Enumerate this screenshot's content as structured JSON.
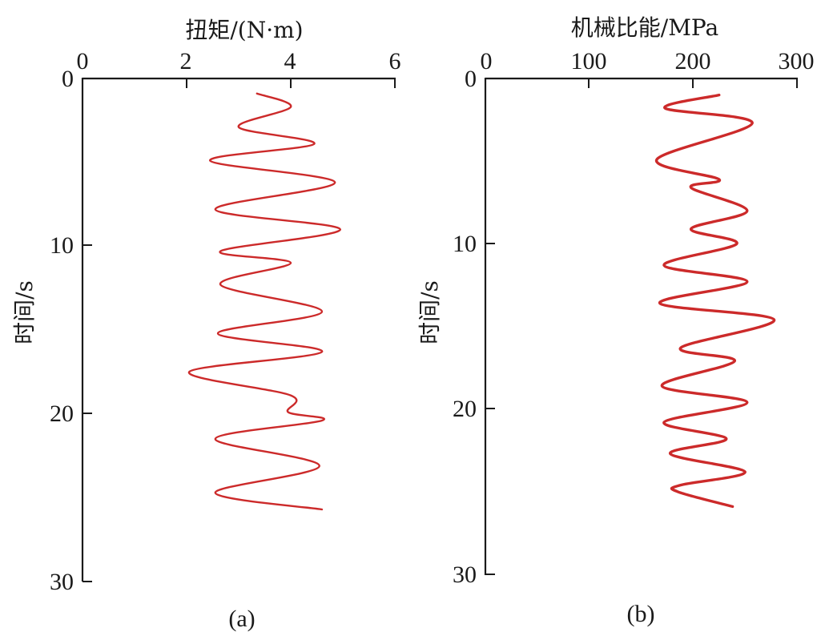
{
  "chart_data": [
    {
      "type": "line",
      "panel_label": "(a)",
      "xlabel": "扭矩/(N·m)",
      "ylabel": "时间/s",
      "xlim": [
        0,
        6
      ],
      "ylim": [
        0,
        30
      ],
      "xticks": [
        "0",
        "2",
        "4",
        "6"
      ],
      "yticks": [
        "0",
        "10",
        "20",
        "30"
      ],
      "x_axis_position": "top",
      "y_inverted": true,
      "grid": false,
      "series": [
        {
          "color": "#cc2a2a",
          "points": [
            [
              3.35,
              0.9
            ],
            [
              4.0,
              1.7
            ],
            [
              3.0,
              2.9
            ],
            [
              4.45,
              3.9
            ],
            [
              2.45,
              4.9
            ],
            [
              4.85,
              6.2
            ],
            [
              2.55,
              7.8
            ],
            [
              4.95,
              9.0
            ],
            [
              2.65,
              10.3
            ],
            [
              4.0,
              11.0
            ],
            [
              2.65,
              12.3
            ],
            [
              4.6,
              13.9
            ],
            [
              2.6,
              15.2
            ],
            [
              4.6,
              16.3
            ],
            [
              2.05,
              17.5
            ],
            [
              4.0,
              18.9
            ],
            [
              3.95,
              19.9
            ],
            [
              4.6,
              20.4
            ],
            [
              2.55,
              21.5
            ],
            [
              4.55,
              23.1
            ],
            [
              2.55,
              24.7
            ],
            [
              4.6,
              25.7
            ]
          ]
        }
      ]
    },
    {
      "type": "line",
      "panel_label": "(b)",
      "xlabel": "机械比能/MPa",
      "ylabel": "时间/s",
      "xlim": [
        0,
        300
      ],
      "ylim": [
        0,
        30
      ],
      "xticks": [
        "0",
        "100",
        "200",
        "300"
      ],
      "yticks": [
        "0",
        "10",
        "20",
        "30"
      ],
      "x_axis_position": "top",
      "y_inverted": true,
      "grid": false,
      "series": [
        {
          "color": "#cc2a2a",
          "points": [
            [
              225,
              1.0
            ],
            [
              173,
              1.8
            ],
            [
              257,
              2.7
            ],
            [
              165,
              4.9
            ],
            [
              225,
              6.1
            ],
            [
              198,
              6.6
            ],
            [
              252,
              8.0
            ],
            [
              198,
              9.1
            ],
            [
              242,
              10.0
            ],
            [
              172,
              11.3
            ],
            [
              252,
              12.3
            ],
            [
              168,
              13.6
            ],
            [
              278,
              14.6
            ],
            [
              188,
              16.3
            ],
            [
              240,
              17.1
            ],
            [
              170,
              18.6
            ],
            [
              252,
              19.6
            ],
            [
              172,
              20.8
            ],
            [
              232,
              21.8
            ],
            [
              178,
              22.7
            ],
            [
              250,
              23.8
            ],
            [
              188,
              24.6
            ],
            [
              185,
              25.0
            ],
            [
              238,
              25.9
            ]
          ]
        }
      ]
    }
  ]
}
